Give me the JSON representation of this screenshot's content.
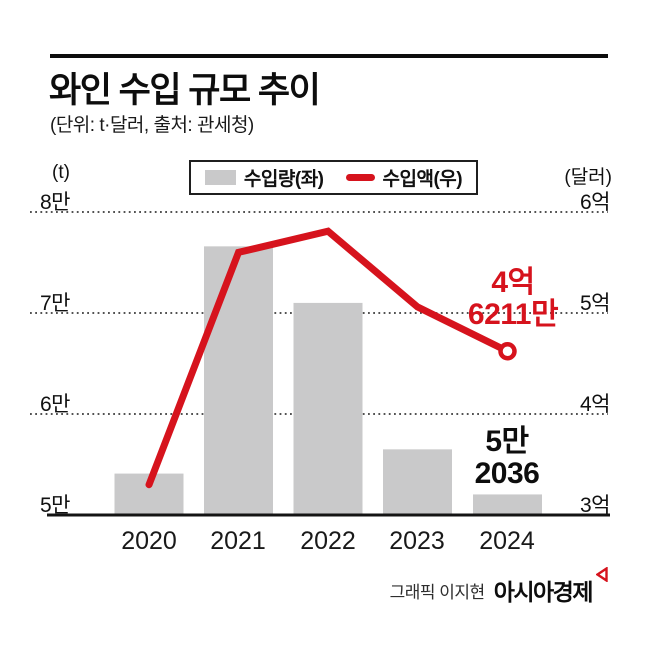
{
  "header": {
    "title": "와인 수입 규모 추이",
    "subtitle": "(단위: t·달러, 출처: 관세청)"
  },
  "legend": {
    "volume_label": "수입량(좌)",
    "amount_label": "수입액(우)"
  },
  "colors": {
    "bar": "#c9c9ca",
    "line": "#d6131d",
    "grid": "#3a3a3a",
    "baseline": "#141414",
    "text": "#0d0d0d"
  },
  "chart_data": {
    "type": "combo-bar-line",
    "categories": [
      "2020",
      "2021",
      "2022",
      "2023",
      "2024"
    ],
    "series": [
      {
        "name": "수입량(좌)",
        "type": "bar",
        "axis": "left",
        "unit": "t",
        "values": [
          54100,
          76600,
          71000,
          56500,
          52036
        ]
      },
      {
        "name": "수입액(우)",
        "type": "line",
        "axis": "right",
        "unit": "억 달러",
        "values": [
          3.3,
          5.6,
          5.81,
          5.06,
          4.6211
        ]
      }
    ],
    "left_axis": {
      "unit_label": "(t)",
      "ticks": [
        "8만",
        "7만",
        "6만",
        "5만"
      ],
      "min": 50000,
      "max": 80000
    },
    "right_axis": {
      "unit_label": "(달러)",
      "ticks": [
        "6억",
        "5억",
        "4억",
        "3억"
      ],
      "min": 3,
      "max": 6
    },
    "grid": "horizontal-dotted",
    "legend_position": "top-center"
  },
  "annotations": {
    "amount_2024": {
      "line1": "4억",
      "line2": "6211만"
    },
    "volume_2024": {
      "line1": "5만",
      "line2": "2036"
    }
  },
  "credit": {
    "byline": "그래픽 이지현",
    "brand": "아시아경제"
  }
}
